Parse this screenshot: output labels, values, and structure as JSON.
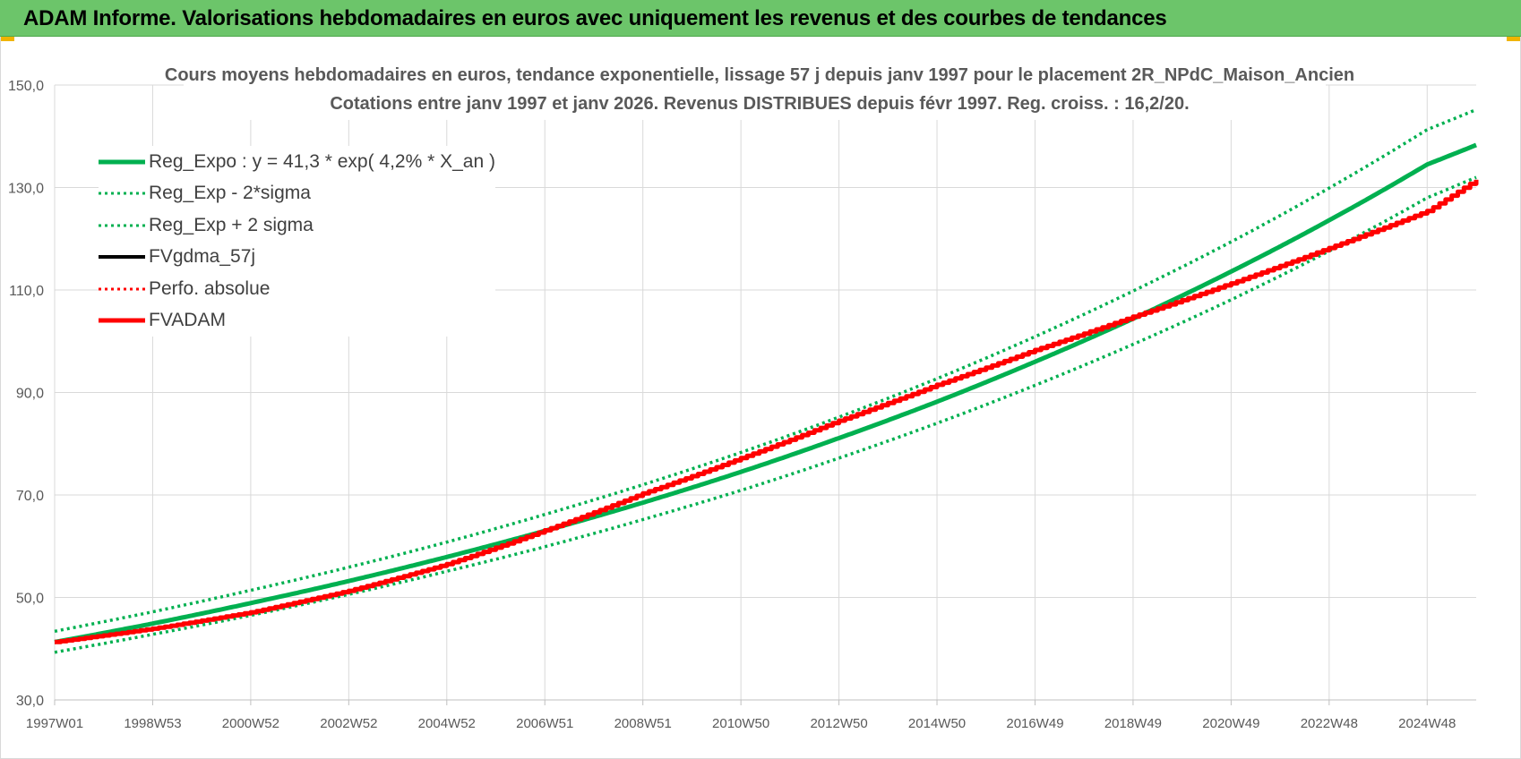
{
  "header": {
    "title": "ADAM Informe. Valorisations hebdomadaires en euros avec uniquement les revenus et des courbes de tendances"
  },
  "colors": {
    "header_bg": "#6cc56a",
    "green": "#00b050",
    "red": "#ff0000",
    "black": "#000000",
    "grid": "#d9d9d9"
  },
  "chart_data": {
    "type": "line",
    "title": "Cours moyens  hebdomadaires en euros, tendance exponentielle, lissage 57 j depuis janv 1997 pour le placement 2R_NPdC_Maison_Ancien",
    "subtitle": "Cotations entre janv 1997 et janv 2026. Revenus DISTRIBUES depuis févr 1997. Reg. croiss. : 16,2/20.",
    "xlabel": "",
    "ylabel": "",
    "ylim": [
      30,
      150
    ],
    "xlim": [
      1997.0,
      2026.0
    ],
    "yticks": [
      "30,0",
      "50,0",
      "70,0",
      "90,0",
      "110,0",
      "130,0",
      "150,0"
    ],
    "ytick_values": [
      30,
      50,
      70,
      90,
      110,
      130,
      150
    ],
    "xticks": [
      "1997W01",
      "1998W53",
      "2000W52",
      "2002W52",
      "2004W52",
      "2006W51",
      "2008W51",
      "2010W50",
      "2012W50",
      "2014W50",
      "2016W49",
      "2018W49",
      "2020W49",
      "2022W48",
      "2024W48"
    ],
    "xtick_values": [
      1997.0,
      1999.0,
      2001.0,
      2003.0,
      2005.0,
      2007.0,
      2009.0,
      2011.0,
      2013.0,
      2015.0,
      2017.0,
      2019.0,
      2021.0,
      2023.0,
      2025.0
    ],
    "grid": true,
    "legend_position": "top-left",
    "series": [
      {
        "name": "Reg_Expo : y = 41,3 * exp( 4,2% *  X_an )",
        "style": "solid-thick",
        "color": "#00b050",
        "x": [
          1997,
          1999,
          2001,
          2003,
          2005,
          2007,
          2009,
          2011,
          2013,
          2015,
          2017,
          2019,
          2021,
          2023,
          2025,
          2026
        ],
        "y": [
          41.3,
          44.9,
          48.9,
          53.2,
          57.9,
          63.0,
          68.5,
          74.5,
          81.1,
          88.2,
          96.0,
          104.4,
          113.6,
          123.6,
          134.5,
          138.3
        ]
      },
      {
        "name": "Reg_Exp - 2*sigma",
        "style": "dotted",
        "color": "#00b050",
        "x": [
          1997,
          1999,
          2001,
          2003,
          2005,
          2007,
          2009,
          2011,
          2013,
          2015,
          2017,
          2019,
          2021,
          2023,
          2025,
          2026
        ],
        "y": [
          39.3,
          42.8,
          46.5,
          50.6,
          55.1,
          59.9,
          65.2,
          70.9,
          77.2,
          84.0,
          91.4,
          99.4,
          108.1,
          117.6,
          128.0,
          132.0
        ]
      },
      {
        "name": "Reg_Exp + 2 sigma",
        "style": "dotted",
        "color": "#00b050",
        "x": [
          1997,
          1999,
          2001,
          2003,
          2005,
          2007,
          2009,
          2011,
          2013,
          2015,
          2017,
          2019,
          2021,
          2023,
          2025,
          2026
        ],
        "y": [
          43.4,
          47.2,
          51.4,
          55.9,
          60.8,
          66.2,
          72.0,
          78.3,
          85.2,
          92.7,
          100.9,
          109.8,
          119.4,
          129.9,
          141.3,
          145.2
        ]
      },
      {
        "name": "FVgdma_57j",
        "style": "solid",
        "color": "#000000",
        "x": [
          1997,
          1999,
          2001,
          2003,
          2005,
          2007,
          2009,
          2011,
          2013,
          2015,
          2017,
          2019,
          2021,
          2023,
          2025,
          2026
        ],
        "y": [
          41.3,
          43.9,
          47.1,
          51.3,
          56.5,
          63.1,
          70.3,
          77.2,
          84.5,
          91.5,
          98.3,
          104.8,
          111.3,
          118.2,
          125.4,
          131.5
        ]
      },
      {
        "name": "Perfo. absolue",
        "style": "dotted",
        "color": "#ff0000",
        "x": [
          1997,
          1999,
          2001,
          2003,
          2005,
          2007,
          2009,
          2011,
          2013,
          2015,
          2017,
          2019,
          2021,
          2023,
          2025,
          2026
        ],
        "y": [
          41.3,
          43.9,
          47.1,
          51.3,
          56.5,
          63.1,
          70.3,
          77.2,
          84.5,
          91.5,
          98.3,
          104.8,
          111.3,
          118.2,
          125.4,
          131.5
        ]
      },
      {
        "name": "FVADAM",
        "style": "solid-thick",
        "color": "#ff0000",
        "x": [
          1997,
          1999,
          2001,
          2003,
          2005,
          2007,
          2009,
          2011,
          2013,
          2015,
          2017,
          2019,
          2021,
          2023,
          2025,
          2026
        ],
        "y": [
          41.3,
          43.9,
          47.1,
          51.3,
          56.5,
          63.1,
          70.3,
          77.2,
          84.5,
          91.5,
          98.3,
          104.8,
          111.3,
          118.2,
          125.4,
          131.5
        ]
      }
    ]
  }
}
